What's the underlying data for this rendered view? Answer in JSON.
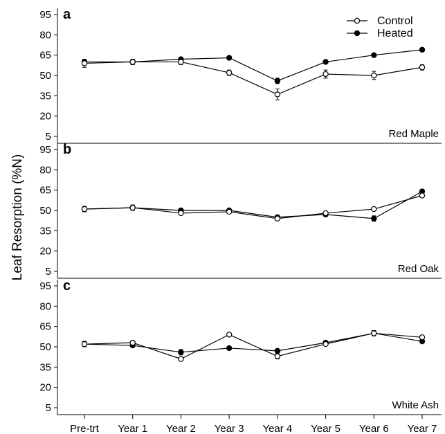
{
  "chart_data": {
    "type": "line",
    "ylabel": "Leaf Resorption (%N)",
    "categories": [
      "Pre-trt",
      "Year 1",
      "Year 2",
      "Year 3",
      "Year 4",
      "Year 5",
      "Year 6",
      "Year 7"
    ],
    "yticks": [
      5,
      20,
      35,
      50,
      65,
      80,
      95
    ],
    "ylim": [
      0,
      100
    ],
    "legend": {
      "placement": "top-right",
      "entries": [
        {
          "name": "Control",
          "marker": "open-circle"
        },
        {
          "name": "Heated",
          "marker": "filled-circle"
        }
      ]
    },
    "panels": [
      {
        "letter": "a",
        "species": "Red Maple",
        "series": [
          {
            "name": "Control",
            "values": [
              59,
              60,
              60,
              52,
              36,
              51,
              50,
              56
            ],
            "errors": [
              3,
              2,
              2,
              2,
              4,
              3,
              3,
              2
            ]
          },
          {
            "name": "Heated",
            "values": [
              60,
              60,
              62,
              63,
              46,
              60,
              65,
              69
            ],
            "errors": [
              2,
              2,
              1,
              1,
              2,
              1,
              1,
              1
            ]
          }
        ]
      },
      {
        "letter": "b",
        "species": "Red Oak",
        "series": [
          {
            "name": "Control",
            "values": [
              51,
              52,
              48,
              49,
              44,
              48,
              51,
              61
            ],
            "errors": [
              2,
              2,
              1,
              1,
              1,
              1,
              1,
              1
            ]
          },
          {
            "name": "Heated",
            "values": [
              51,
              52,
              50,
              50,
              45,
              47,
              44,
              64
            ],
            "errors": [
              2,
              2,
              1,
              1,
              1,
              1,
              2,
              1
            ]
          }
        ]
      },
      {
        "letter": "c",
        "species": "White Ash",
        "series": [
          {
            "name": "Control",
            "values": [
              52,
              53,
              41,
              59,
              43,
              52,
              60,
              57
            ],
            "errors": [
              2,
              1,
              1,
              1,
              2,
              1,
              1,
              1
            ]
          },
          {
            "name": "Heated",
            "values": [
              52,
              51,
              46,
              49,
              47,
              53,
              60,
              54
            ],
            "errors": [
              2,
              1,
              2,
              1,
              1,
              1,
              2,
              1
            ]
          }
        ]
      }
    ]
  }
}
